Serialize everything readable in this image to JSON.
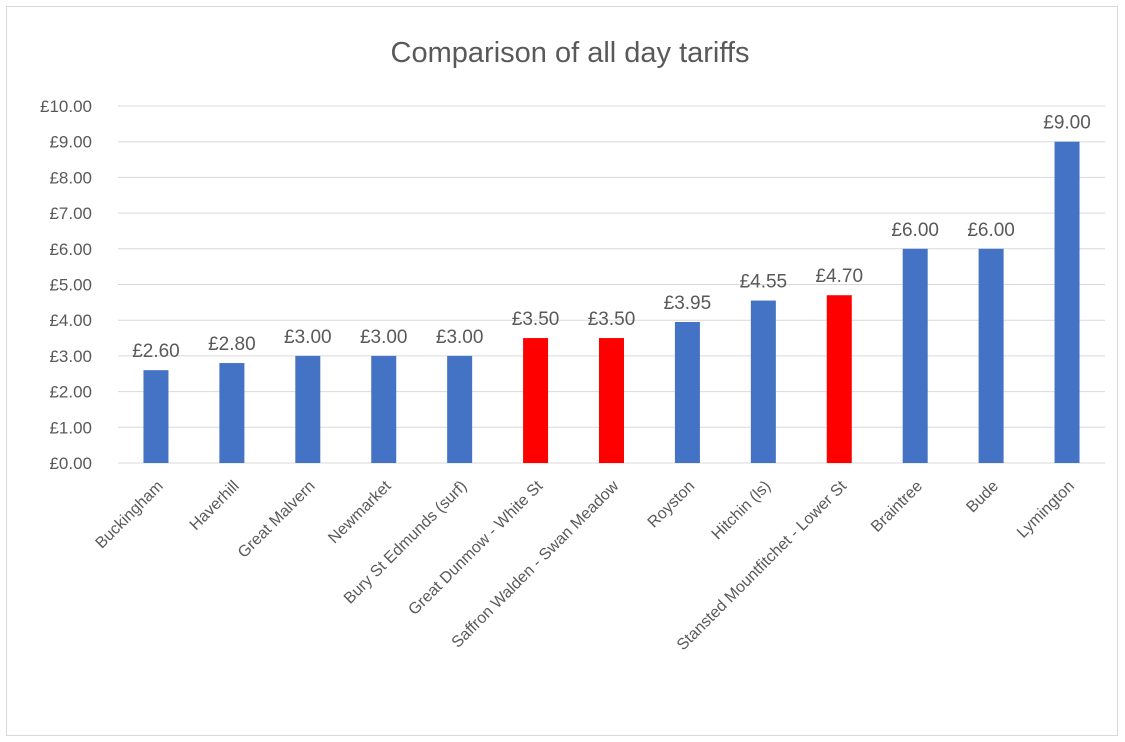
{
  "chart_data": {
    "type": "bar",
    "title": "Comparison of all day tariffs",
    "xlabel": "",
    "ylabel": "",
    "ylim": [
      0,
      10
    ],
    "ytick_step": 1,
    "ytick_labels": [
      "£0.00",
      "£1.00",
      "£2.00",
      "£3.00",
      "£4.00",
      "£5.00",
      "£6.00",
      "£7.00",
      "£8.00",
      "£9.00",
      "£10.00"
    ],
    "grid": true,
    "legend": "none",
    "categories": [
      "Buckingham",
      "Haverhill",
      "Great Malvern",
      "Newmarket",
      "Bury St Edmunds (surf)",
      "Great Dunmow - White St",
      "Saffron Walden - Swan Meadow",
      "Royston",
      "Hitchin (ls)",
      "Stansted Mountfitchet - Lower St",
      "Braintree",
      "Bude",
      "Lymington"
    ],
    "values": [
      2.6,
      2.8,
      3.0,
      3.0,
      3.0,
      3.5,
      3.5,
      3.95,
      4.55,
      4.7,
      6.0,
      6.0,
      9.0
    ],
    "data_labels": [
      "£2.60",
      "£2.80",
      "£3.00",
      "£3.00",
      "£3.00",
      "£3.50",
      "£3.50",
      "£3.95",
      "£4.55",
      "£4.70",
      "£6.00",
      "£6.00",
      "£9.00"
    ],
    "bar_colors": [
      "#4472c4",
      "#4472c4",
      "#4472c4",
      "#4472c4",
      "#4472c4",
      "#ff0000",
      "#ff0000",
      "#4472c4",
      "#4472c4",
      "#ff0000",
      "#4472c4",
      "#4472c4",
      "#4472c4"
    ]
  }
}
